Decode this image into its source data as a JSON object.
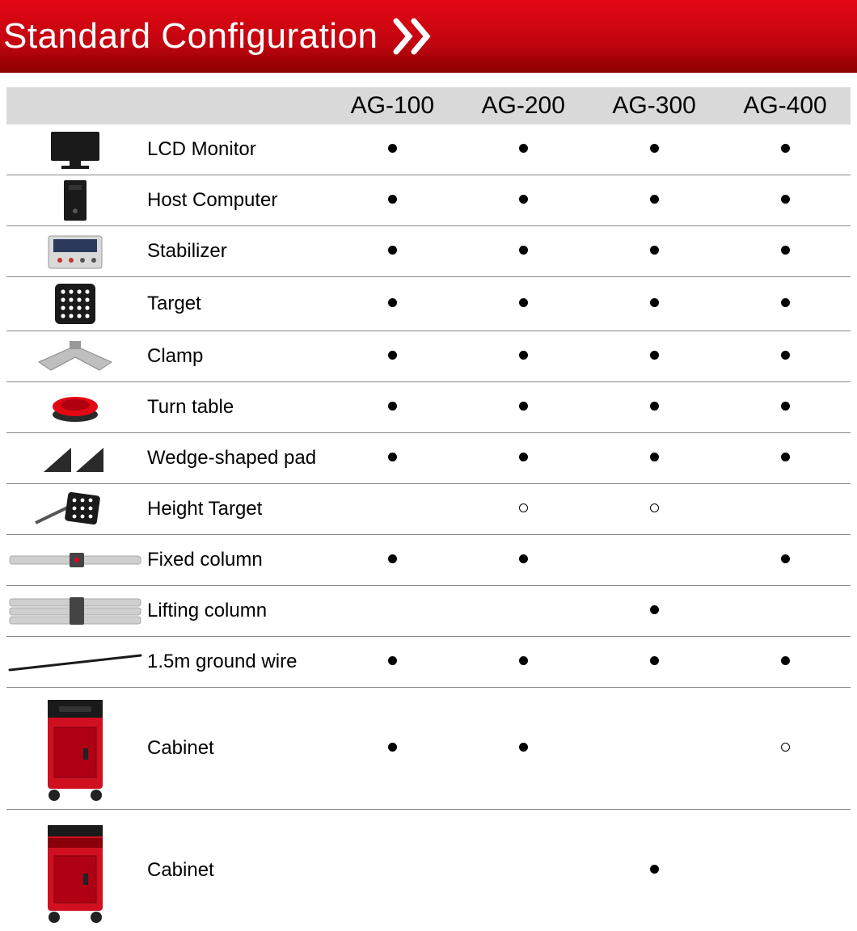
{
  "header": {
    "title": "Standard Configuration",
    "bg_gradient_from": "#e30613",
    "bg_gradient_mid": "#c20510",
    "bg_gradient_to": "#8a0000",
    "title_color": "#ffffff",
    "title_fontsize": 44,
    "chevron_color": "#ffffff"
  },
  "table": {
    "header_bg": "#d9d9d9",
    "header_fontsize": 30,
    "row_border_color": "#888888",
    "label_fontsize": 24,
    "marker_filled": "●",
    "marker_hollow": "○",
    "columns": [
      "",
      "AG-100",
      "AG-200",
      "AG-300",
      "AG-400"
    ],
    "rows": [
      {
        "icon": "monitor",
        "label": "LCD Monitor",
        "cells": [
          "filled",
          "filled",
          "filled",
          "filled"
        ],
        "tall": false
      },
      {
        "icon": "tower",
        "label": "Host Computer",
        "cells": [
          "filled",
          "filled",
          "filled",
          "filled"
        ],
        "tall": false
      },
      {
        "icon": "stabilizer",
        "label": "Stabilizer",
        "cells": [
          "filled",
          "filled",
          "filled",
          "filled"
        ],
        "tall": false
      },
      {
        "icon": "target",
        "label": "Target",
        "cells": [
          "filled",
          "filled",
          "filled",
          "filled"
        ],
        "tall": false
      },
      {
        "icon": "clamp",
        "label": "Clamp",
        "cells": [
          "filled",
          "filled",
          "filled",
          "filled"
        ],
        "tall": false
      },
      {
        "icon": "turntable",
        "label": "Turn table",
        "cells": [
          "filled",
          "filled",
          "filled",
          "filled"
        ],
        "tall": false
      },
      {
        "icon": "wedge",
        "label": "Wedge-shaped pad",
        "cells": [
          "filled",
          "filled",
          "filled",
          "filled"
        ],
        "tall": false
      },
      {
        "icon": "heighttarget",
        "label": "Height Target",
        "cells": [
          "",
          "hollow",
          "hollow",
          ""
        ],
        "tall": false
      },
      {
        "icon": "fixedcol",
        "label": "Fixed column",
        "cells": [
          "filled",
          "filled",
          "",
          "filled"
        ],
        "tall": false
      },
      {
        "icon": "liftcol",
        "label": "Lifting column",
        "cells": [
          "",
          "",
          "filled",
          ""
        ],
        "tall": false
      },
      {
        "icon": "wire",
        "label": "1.5m ground wire",
        "cells": [
          "filled",
          "filled",
          "filled",
          "filled"
        ],
        "tall": false
      },
      {
        "icon": "cabinet1",
        "label": "Cabinet",
        "cells": [
          "filled",
          "filled",
          "",
          "hollow"
        ],
        "tall": true
      },
      {
        "icon": "cabinet2",
        "label": "Cabinet",
        "cells": [
          "",
          "",
          "filled",
          ""
        ],
        "tall": true
      }
    ]
  },
  "icons": {
    "monitor_color": "#1a1a1a",
    "tower_color": "#1a1a1a",
    "stabilizer_body": "#d9d9d9",
    "stabilizer_panel": "#2b3a5a",
    "target_color": "#1a1a1a",
    "target_dots": "#ffffff",
    "clamp_color": "#bfbfbf",
    "turntable_top": "#e30613",
    "turntable_base": "#2a2a2a",
    "wedge_color": "#2a2a2a",
    "column_color": "#cfcfcf",
    "column_accent": "#e30613",
    "wire_color": "#1a1a1a",
    "cabinet_red": "#d01020",
    "cabinet_dark": "#1a1a1a"
  }
}
